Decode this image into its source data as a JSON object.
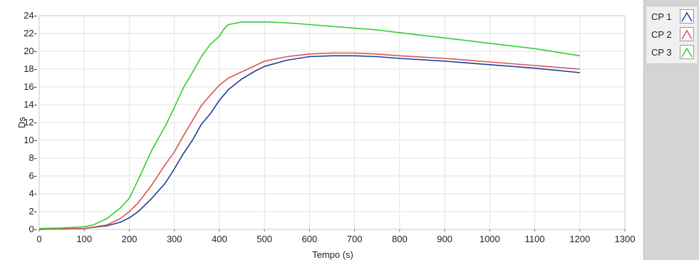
{
  "chart_data": {
    "type": "line",
    "title": "",
    "xlabel": "Tempo (s)",
    "ylabel": "Ds",
    "xlim": [
      0,
      1300
    ],
    "ylim": [
      0,
      24
    ],
    "x_ticks": [
      0,
      100,
      200,
      300,
      400,
      500,
      600,
      700,
      800,
      900,
      1000,
      1100,
      1200,
      1300
    ],
    "y_ticks": [
      0,
      2,
      4,
      6,
      8,
      10,
      12,
      14,
      16,
      18,
      20,
      22,
      24
    ],
    "x_tick_labels": [
      "0",
      "100",
      "200",
      "300",
      "400",
      "500",
      "600",
      "700",
      "800",
      "900",
      "1000",
      "1100",
      "1200",
      "1300"
    ],
    "y_tick_labels": [
      "0-",
      "2-",
      "4-",
      "6-",
      "8-",
      "10-",
      "12-",
      "14-",
      "16-",
      "18-",
      "20-",
      "22-",
      "24-"
    ],
    "grid": true,
    "legend_position": "right",
    "series": [
      {
        "name": "CP 1",
        "color": "#1f3f99",
        "x": [
          0,
          50,
          100,
          150,
          180,
          200,
          220,
          250,
          280,
          300,
          320,
          340,
          360,
          380,
          400,
          420,
          450,
          480,
          500,
          550,
          600,
          650,
          700,
          750,
          800,
          900,
          1000,
          1100,
          1200
        ],
        "y": [
          0,
          0.05,
          0.1,
          0.4,
          0.8,
          1.3,
          2.0,
          3.5,
          5.2,
          6.8,
          8.5,
          10.0,
          11.8,
          13.0,
          14.5,
          15.7,
          16.9,
          17.8,
          18.3,
          19.0,
          19.4,
          19.5,
          19.5,
          19.4,
          19.2,
          18.9,
          18.5,
          18.1,
          17.6
        ]
      },
      {
        "name": "CP 2",
        "color": "#d9534f",
        "x": [
          0,
          50,
          100,
          150,
          180,
          200,
          220,
          250,
          280,
          300,
          320,
          340,
          360,
          380,
          400,
          420,
          450,
          480,
          500,
          550,
          600,
          650,
          700,
          750,
          800,
          900,
          1000,
          1100,
          1200
        ],
        "y": [
          0,
          0.05,
          0.1,
          0.5,
          1.2,
          2.0,
          3.0,
          5.0,
          7.3,
          8.7,
          10.5,
          12.2,
          13.9,
          15.1,
          16.2,
          17.0,
          17.7,
          18.4,
          18.9,
          19.4,
          19.7,
          19.8,
          19.8,
          19.7,
          19.5,
          19.2,
          18.8,
          18.4,
          18.0
        ]
      },
      {
        "name": "CP 3",
        "color": "#33cc33",
        "x": [
          0,
          50,
          100,
          120,
          150,
          180,
          200,
          220,
          250,
          280,
          300,
          320,
          340,
          360,
          380,
          400,
          410,
          420,
          450,
          480,
          500,
          550,
          600,
          650,
          700,
          750,
          800,
          900,
          1000,
          1100,
          1200
        ],
        "y": [
          0.1,
          0.15,
          0.3,
          0.5,
          1.2,
          2.4,
          3.5,
          5.6,
          8.9,
          11.6,
          13.7,
          15.9,
          17.6,
          19.4,
          20.8,
          21.7,
          22.5,
          23.0,
          23.3,
          23.3,
          23.3,
          23.2,
          23.0,
          22.8,
          22.6,
          22.4,
          22.1,
          21.5,
          20.9,
          20.3,
          19.5
        ]
      }
    ]
  }
}
